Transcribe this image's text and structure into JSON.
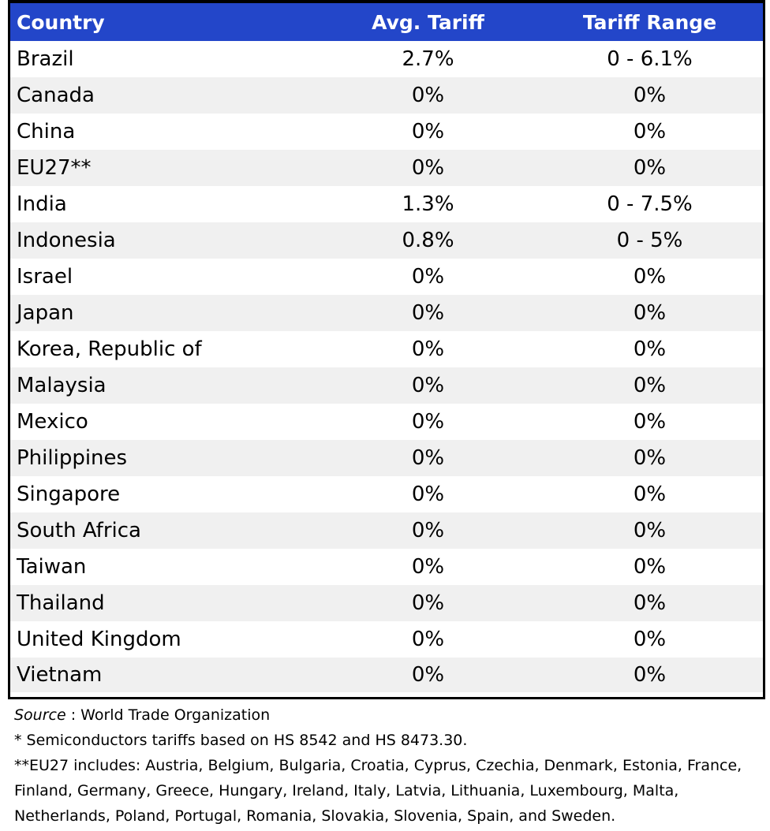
{
  "table": {
    "headers": {
      "country": "Country",
      "avg_tariff": "Avg. Tariff",
      "tariff_range": "Tariff Range"
    },
    "rows": [
      {
        "country": "Brazil",
        "avg_tariff": "2.7%",
        "tariff_range": "0 - 6.1%"
      },
      {
        "country": "Canada",
        "avg_tariff": "0%",
        "tariff_range": "0%"
      },
      {
        "country": "China",
        "avg_tariff": "0%",
        "tariff_range": "0%"
      },
      {
        "country": "EU27**",
        "avg_tariff": "0%",
        "tariff_range": "0%"
      },
      {
        "country": "India",
        "avg_tariff": "1.3%",
        "tariff_range": "0 - 7.5%"
      },
      {
        "country": "Indonesia",
        "avg_tariff": "0.8%",
        "tariff_range": "0 - 5%"
      },
      {
        "country": "Israel",
        "avg_tariff": "0%",
        "tariff_range": "0%"
      },
      {
        "country": "Japan",
        "avg_tariff": "0%",
        "tariff_range": "0%"
      },
      {
        "country": "Korea, Republic of",
        "avg_tariff": "0%",
        "tariff_range": "0%"
      },
      {
        "country": "Malaysia",
        "avg_tariff": "0%",
        "tariff_range": "0%"
      },
      {
        "country": "Mexico",
        "avg_tariff": "0%",
        "tariff_range": "0%"
      },
      {
        "country": "Philippines",
        "avg_tariff": "0%",
        "tariff_range": "0%"
      },
      {
        "country": "Singapore",
        "avg_tariff": "0%",
        "tariff_range": "0%"
      },
      {
        "country": "South Africa",
        "avg_tariff": "0%",
        "tariff_range": "0%"
      },
      {
        "country": "Taiwan",
        "avg_tariff": "0%",
        "tariff_range": "0%"
      },
      {
        "country": "Thailand",
        "avg_tariff": "0%",
        "tariff_range": "0%"
      },
      {
        "country": "United Kingdom",
        "avg_tariff": "0%",
        "tariff_range": "0%"
      },
      {
        "country": "Vietnam",
        "avg_tariff": "0%",
        "tariff_range": "0%"
      }
    ]
  },
  "notes": {
    "source_label": "Source",
    "source_text": " : World Trade Organization",
    "footnote_1": "* Semiconductors tariffs based on HS 8542 and HS 8473.30.",
    "footnote_2_lines": [
      "**EU27 includes: Austria, Belgium, Bulgaria, Croatia, Cyprus, Czechia, Denmark, Estonia, France,",
      "Finland, Germany, Greece, Hungary, Ireland, Italy, Latvia, Lithuania, Luxembourg, Malta,",
      "Netherlands, Poland, Portugal, Romania, Slovakia, Slovenia, Spain, and Sweden."
    ]
  },
  "colors": {
    "header_background": "#2346c9",
    "header_text": "#ffffff",
    "stripe_background": "#f0f0f0",
    "border": "#000000"
  }
}
